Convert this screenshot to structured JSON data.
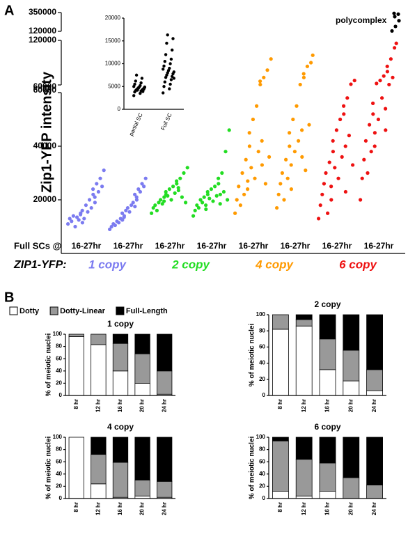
{
  "panel_a": {
    "label": "A",
    "type": "scatter",
    "ylabel": "Zip1-YFP intensity",
    "segments": [
      {
        "ylim": [
          0,
          60000
        ],
        "yticks": [
          20000,
          40000,
          60000
        ]
      },
      {
        "ylim": [
          60000,
          120000
        ],
        "yticks": [
          60000,
          120000
        ]
      },
      {
        "ylim": [
          120000,
          350000
        ],
        "yticks": [
          120000,
          350000
        ]
      }
    ],
    "row_label": "Full SCs @",
    "copy_row_label": "ZIP1-YFP:",
    "copies": [
      {
        "name": "1 copy",
        "color": "#7b7bf0"
      },
      {
        "name": "2 copy",
        "color": "#22dd22"
      },
      {
        "name": "4 copy",
        "color": "#ff9a00"
      },
      {
        "name": "6 copy",
        "color": "#ee1111"
      }
    ],
    "groups": [
      {
        "name": "16-27hr",
        "color": "#7b7bf0",
        "values": [
          11000,
          13000,
          12000,
          14000,
          10000,
          13500,
          12500,
          15000,
          11500,
          14500,
          16000,
          13000,
          18000,
          15500,
          20000,
          17000,
          22000,
          19000,
          24000,
          21000,
          26000,
          23000,
          28000,
          25000,
          31000
        ]
      },
      {
        "name": "16-27hr",
        "color": "#7b7bf0",
        "values": [
          9000,
          10000,
          11000,
          10500,
          12000,
          11500,
          13000,
          12500,
          14000,
          15000,
          13500,
          16000,
          17000,
          15500,
          18000,
          19000,
          17500,
          20000,
          22000,
          21000,
          24000,
          23000,
          26000,
          25000,
          28000
        ]
      },
      {
        "name": "16-27hr",
        "color": "#22dd22",
        "values": [
          15000,
          17000,
          18000,
          16000,
          19000,
          20000,
          18500,
          21000,
          22000,
          19500,
          23000,
          21500,
          24000,
          20000,
          25000,
          22500,
          26000,
          23500,
          27000,
          24500,
          28000,
          21000,
          30000,
          19000,
          32000
        ]
      },
      {
        "name": "16-27hr",
        "color": "#22dd22",
        "values": [
          14000,
          16000,
          18000,
          17000,
          20000,
          19000,
          21000,
          16500,
          22000,
          18000,
          23000,
          20500,
          24000,
          19500,
          25000,
          21500,
          26000,
          22000,
          28000,
          18500,
          30000,
          23000,
          38000,
          20000,
          46000
        ]
      },
      {
        "name": "16-27hr",
        "color": "#ff9a00",
        "values": [
          15000,
          20000,
          25000,
          18000,
          30000,
          22000,
          35000,
          27000,
          40000,
          24000,
          45000,
          32000,
          50000,
          28000,
          55000,
          38000,
          60500,
          33000,
          65000,
          42000,
          70000,
          26000,
          80000,
          36000,
          95000
        ]
      },
      {
        "name": "16-27hr",
        "color": "#ff9a00",
        "values": [
          17000,
          22000,
          26000,
          30000,
          20000,
          35000,
          28000,
          40000,
          24000,
          45000,
          33000,
          50000,
          38000,
          55000,
          42000,
          60500,
          36000,
          70000,
          46000,
          75000,
          31000,
          85000,
          48000,
          90000,
          100000
        ]
      },
      {
        "name": "16-27hr",
        "color": "#ee1111",
        "values": [
          13000,
          18000,
          22000,
          26000,
          30000,
          15000,
          34000,
          20000,
          38000,
          25000,
          42000,
          32000,
          46000,
          28000,
          50000,
          36000,
          52000,
          23000,
          55000,
          40000,
          58000,
          44000,
          61000,
          33000,
          66000
        ]
      },
      {
        "name": "16-27hr",
        "color": "#ee1111",
        "values": [
          20000,
          28000,
          35000,
          42000,
          30000,
          48000,
          38000,
          52000,
          45000,
          56000,
          40000,
          62000,
          50000,
          66000,
          58000,
          72000,
          46000,
          78000,
          54000,
          85000,
          60500,
          95000,
          70000,
          110000,
          116000
        ]
      }
    ],
    "polycomplex": {
      "name": "polycomplex",
      "color": "#000000",
      "values": [
        125000,
        180000,
        250000,
        300000,
        330000,
        340000
      ]
    },
    "inset": {
      "type": "scatter",
      "categories": [
        "partial SC",
        "Full SC"
      ],
      "ylim": [
        0,
        20000
      ],
      "yticks": [
        0,
        5000,
        10000,
        15000,
        20000
      ],
      "color": "#000000",
      "series": [
        {
          "values": [
            3000,
            3500,
            3800,
            4000,
            4100,
            4200,
            4300,
            4400,
            4500,
            4600,
            4700,
            4800,
            4900,
            5000,
            5200,
            5500,
            5800,
            6200,
            6800,
            7500,
            3900,
            4200,
            4400,
            4600,
            4900
          ]
        },
        {
          "values": [
            3600,
            4500,
            5000,
            5500,
            6000,
            6500,
            7000,
            7200,
            7500,
            7800,
            8000,
            8200,
            8500,
            8800,
            9000,
            9500,
            10000,
            10500,
            11000,
            12000,
            13000,
            14500,
            15500,
            16300,
            6800
          ]
        }
      ]
    }
  },
  "panel_b": {
    "label": "B",
    "legend": [
      {
        "name": "Dotty",
        "color": "#ffffff"
      },
      {
        "name": "Dotty-Linear",
        "color": "#999999"
      },
      {
        "name": "Full-Length",
        "color": "#000000"
      }
    ],
    "charts": [
      {
        "type": "stacked_bar",
        "title": "1 copy",
        "ylabel": "% of meiotic nuclei",
        "categories": [
          "8 hr",
          "12 hr",
          "16 hr",
          "20 hr",
          "24 hr"
        ],
        "ylim": [
          0,
          100
        ],
        "yticks": [
          0,
          20,
          40,
          60,
          80,
          100
        ],
        "series": [
          {
            "name": "Dotty",
            "color": "#ffffff",
            "values": [
              96,
              83,
              40,
              20,
              2
            ]
          },
          {
            "name": "Dotty-Linear",
            "color": "#999999",
            "values": [
              4,
              17,
              45,
              48,
              38
            ]
          },
          {
            "name": "Full-Length",
            "color": "#000000",
            "values": [
              0,
              0,
              15,
              32,
              60
            ]
          }
        ]
      },
      {
        "type": "stacked_bar",
        "title": "2 copy",
        "ylabel": "% of meiotic nuclei",
        "categories": [
          "8 hr",
          "12 hr",
          "16 hr",
          "20 hr",
          "24 hr"
        ],
        "ylim": [
          0,
          100
        ],
        "yticks": [
          0,
          20,
          40,
          60,
          80,
          100
        ],
        "series": [
          {
            "name": "Dotty",
            "color": "#ffffff",
            "values": [
              82,
              86,
              32,
              18,
              6
            ]
          },
          {
            "name": "Dotty-Linear",
            "color": "#999999",
            "values": [
              18,
              8,
              38,
              38,
              26
            ]
          },
          {
            "name": "Full-Length",
            "color": "#000000",
            "values": [
              0,
              6,
              30,
              44,
              68
            ]
          }
        ]
      },
      {
        "type": "stacked_bar",
        "title": "4 copy",
        "ylabel": "% of meiotic nuclei",
        "categories": [
          "8 hr",
          "12 hr",
          "16 hr",
          "20 hr",
          "24 hr"
        ],
        "ylim": [
          0,
          100
        ],
        "yticks": [
          0,
          20,
          40,
          60,
          80,
          100
        ],
        "series": [
          {
            "name": "Dotty",
            "color": "#ffffff",
            "values": [
              100,
              24,
              2,
              4,
              2
            ]
          },
          {
            "name": "Dotty-Linear",
            "color": "#999999",
            "values": [
              0,
              48,
              57,
              26,
              26
            ]
          },
          {
            "name": "Full-Length",
            "color": "#000000",
            "values": [
              0,
              28,
              41,
              70,
              72
            ]
          }
        ]
      },
      {
        "type": "stacked_bar",
        "title": "6 copy",
        "ylabel": "% of meiotic nuclei",
        "categories": [
          "8 hr",
          "12 hr",
          "16 hr",
          "20 hr",
          "24 hr"
        ],
        "ylim": [
          0,
          100
        ],
        "yticks": [
          0,
          20,
          40,
          60,
          80,
          100
        ],
        "series": [
          {
            "name": "Dotty",
            "color": "#ffffff",
            "values": [
              12,
              4,
              12,
              0,
              0
            ]
          },
          {
            "name": "Dotty-Linear",
            "color": "#999999",
            "values": [
              82,
              60,
              46,
              34,
              22
            ]
          },
          {
            "name": "Full-Length",
            "color": "#000000",
            "values": [
              6,
              36,
              42,
              66,
              78
            ]
          }
        ]
      }
    ]
  }
}
